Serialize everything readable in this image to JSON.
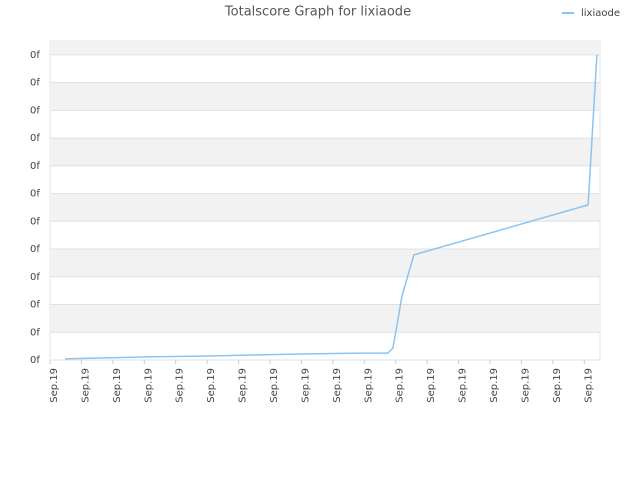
{
  "chart_data": {
    "type": "line",
    "title": "Totalscore Graph for lixiaode",
    "series": [
      {
        "name": "lixiaode",
        "color": "#8ec3ee",
        "x": [
          0.48,
          1.37,
          3.09,
          4.77,
          6.49,
          8.18,
          9.9,
          10.75,
          10.91,
          11.04,
          11.2,
          11.58,
          17.12,
          17.4
        ],
        "values": [
          0.04,
          0.07,
          0.11,
          0.14,
          0.18,
          0.22,
          0.25,
          0.25,
          0.43,
          1.26,
          2.31,
          3.79,
          5.59,
          10.99
        ]
      }
    ],
    "xlim": [
      0,
      17.5
    ],
    "xticks": [
      {
        "value": 0,
        "label": "Sep.19"
      },
      {
        "value": 1,
        "label": "Sep.19"
      },
      {
        "value": 2,
        "label": "Sep.19"
      },
      {
        "value": 3,
        "label": "Sep.19"
      },
      {
        "value": 4,
        "label": "Sep.19"
      },
      {
        "value": 5,
        "label": "Sep.19"
      },
      {
        "value": 6,
        "label": "Sep.19"
      },
      {
        "value": 7,
        "label": "Sep.19"
      },
      {
        "value": 8,
        "label": "Sep.19"
      },
      {
        "value": 9,
        "label": "Sep.19"
      },
      {
        "value": 10,
        "label": "Sep.19"
      },
      {
        "value": 11,
        "label": "Sep.19"
      },
      {
        "value": 12,
        "label": "Sep.19"
      },
      {
        "value": 13,
        "label": "Sep.19"
      },
      {
        "value": 14,
        "label": "Sep.19"
      },
      {
        "value": 15,
        "label": "Sep.19"
      },
      {
        "value": 16,
        "label": "Sep.19"
      },
      {
        "value": 17,
        "label": "Sep.19"
      }
    ],
    "ylim": [
      0,
      11.5
    ],
    "yticks": [
      {
        "value": 0,
        "label": "0f"
      },
      {
        "value": 1,
        "label": "0f"
      },
      {
        "value": 2,
        "label": "0f"
      },
      {
        "value": 3,
        "label": "0f"
      },
      {
        "value": 4,
        "label": "0f"
      },
      {
        "value": 5,
        "label": "0f"
      },
      {
        "value": 6,
        "label": "0f"
      },
      {
        "value": 7,
        "label": "0f"
      },
      {
        "value": 8,
        "label": "0f"
      },
      {
        "value": 9,
        "label": "0f"
      },
      {
        "value": 10,
        "label": "0f"
      },
      {
        "value": 11,
        "label": "0f"
      }
    ],
    "grid": true,
    "legend": "top-right"
  }
}
